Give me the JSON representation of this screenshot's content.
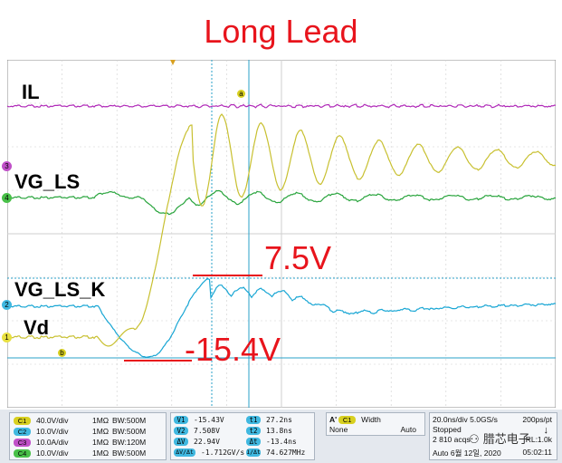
{
  "title": "Long Lead",
  "colors": {
    "il": "#b02ab8",
    "vg_ls": "#28a43c",
    "vg_ls_k": "#18a6d4",
    "vd": "#c8c030",
    "annotation": "#e8141c"
  },
  "labels": {
    "il": "IL",
    "vg_ls": "VG_LS",
    "vg_ls_k": "VG_LS_K",
    "vd": "Vd"
  },
  "annotations": {
    "upper": "7.5V",
    "lower": "-15.4V"
  },
  "markers": {
    "il": "3",
    "vg_ls": "4",
    "vg_ls_k": "2",
    "vd": "1",
    "cursor_a": "a",
    "cursor_b": "b"
  },
  "scope": {
    "channels": [
      {
        "badge": "C1",
        "scale": "40.0V/div",
        "impedance": "1MΩ",
        "bw": "B",
        "bw_val": "W:500M",
        "color": "#d8d020"
      },
      {
        "badge": "C2",
        "scale": "10.0V/div",
        "impedance": "1MΩ",
        "bw": "B",
        "bw_val": "W:500M",
        "color": "#40b8e0"
      },
      {
        "badge": "C3",
        "scale": "10.0A/div",
        "impedance": "1MΩ",
        "bw": "B",
        "bw_val": "W:120M",
        "color": "#c050c8"
      },
      {
        "badge": "C4",
        "scale": "10.0V/div",
        "impedance": "1MΩ",
        "bw": "B",
        "bw_val": "W:500M",
        "color": "#48c048"
      }
    ],
    "cursors": [
      {
        "k1": "V1",
        "v1": "-15.43V",
        "k2": "t1",
        "v2": "27.2ns"
      },
      {
        "k1": "V2",
        "v1": "7.508V",
        "k2": "t2",
        "v2": "13.8ns"
      },
      {
        "k1": "ΔV",
        "v1": "22.94V",
        "k2": "Δt",
        "v2": "-13.4ns"
      },
      {
        "k1": "ΔV/Δt",
        "v1": "-1.712GV/s",
        "k2": "1/Δt",
        "v2": "74.627MHz"
      }
    ],
    "trigger": {
      "badge": "A'",
      "ch": "C1",
      "mode": "Width",
      "type": "None",
      "auto": "Auto"
    },
    "acquisition": {
      "timebase": "20.0ns/div",
      "rate": "5.0GS/s",
      "res": "200ps/pt",
      "state": "Stopped",
      "acqs": "2 810 acqs",
      "rl": "RL:1.0k",
      "mode": "Auto",
      "date": "6월 12일, 2020",
      "time": "05:02:11"
    },
    "watermark": "腊芯电子"
  }
}
